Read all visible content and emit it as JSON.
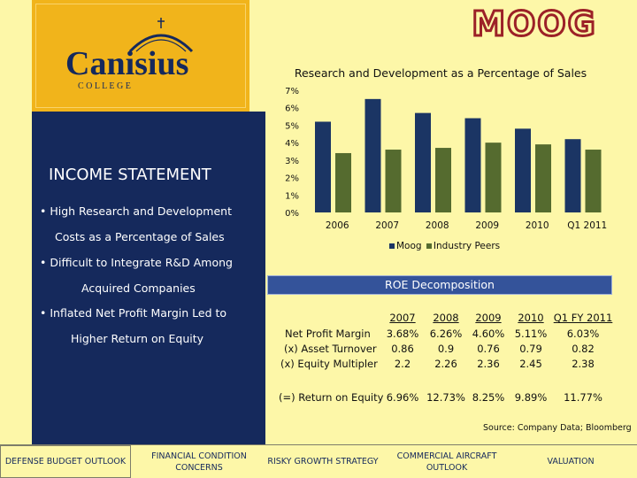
{
  "logo": {
    "name": "Canisius",
    "subtitle": "C O L L E G E"
  },
  "brand": {
    "name": "MOOG",
    "color": "#9c2127"
  },
  "panel": {
    "title": "INCOME STATEMENT",
    "bullets": [
      {
        "line1": "• High Research and Development",
        "line2": "Costs as a Percentage of Sales"
      },
      {
        "line1": "• Difficult to Integrate R&D Among",
        "line2": "Acquired Companies"
      },
      {
        "line1": "• Inflated Net Profit Margin Led to",
        "line2": "Higher Return on Equity"
      }
    ]
  },
  "chart_data": {
    "type": "bar",
    "title": "Research and Development as a Percentage of Sales",
    "categories": [
      "2006",
      "2007",
      "2008",
      "2009",
      "2010",
      "Q1 2011"
    ],
    "series": [
      {
        "name": "Moog",
        "values": [
          5.2,
          6.5,
          5.7,
          5.4,
          4.8,
          4.2
        ],
        "color": "#1b3564"
      },
      {
        "name": "Industry Peers",
        "values": [
          3.4,
          3.6,
          3.7,
          4.0,
          3.9,
          3.6
        ],
        "color": "#556b2f"
      }
    ],
    "yticks": [
      "0%",
      "1%",
      "2%",
      "3%",
      "4%",
      "5%",
      "6%",
      "7%"
    ],
    "ylim": [
      0,
      7
    ],
    "legend": "bottom"
  },
  "roe": {
    "title": "ROE Decomposition",
    "years": [
      "2007",
      "2008",
      "2009",
      "2010",
      "Q1 FY 2011"
    ],
    "rows": [
      {
        "label": "Net Profit Margin",
        "values": [
          "3.68%",
          "6.26%",
          "4.60%",
          "5.11%",
          "6.03%"
        ]
      },
      {
        "label": "(x) Asset Turnover",
        "values": [
          "0.86",
          "0.9",
          "0.76",
          "0.79",
          "0.82"
        ]
      },
      {
        "label": "(x) Equity Multipler",
        "values": [
          "2.2",
          "2.26",
          "2.36",
          "2.45",
          "2.38"
        ]
      }
    ],
    "result": {
      "label": "(=) Return on Equity",
      "values": [
        "6.96%",
        "12.73%",
        "8.25%",
        "9.89%",
        "11.77%"
      ]
    }
  },
  "source": "Source: Company Data; Bloomberg",
  "nav": [
    {
      "line1": "DEFENSE BUDGET OUTLOOK",
      "line2": ""
    },
    {
      "line1": "FINANCIAL CONDITION",
      "line2": "CONCERNS"
    },
    {
      "line1": "RISKY GROWTH STRATEGY",
      "line2": ""
    },
    {
      "line1": "COMMERCIAL AIRCRAFT",
      "line2": "OUTLOOK"
    },
    {
      "line1": "VALUATION",
      "line2": ""
    }
  ]
}
